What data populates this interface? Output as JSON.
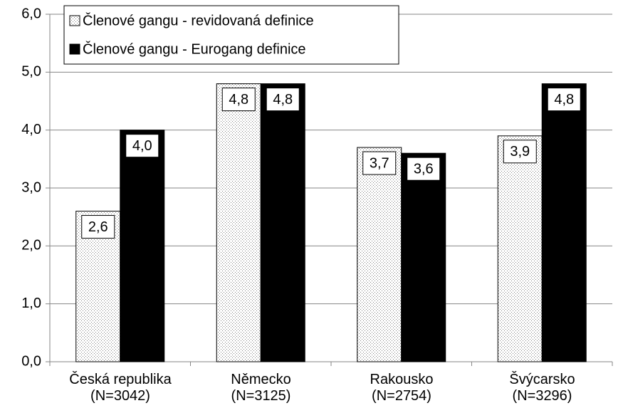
{
  "chart_data": {
    "type": "bar",
    "categories": [
      "Česká republika\n(N=3042)",
      "Německo\n(N=3125)",
      "Rakousko\n(N=2754)",
      "Švýcarsko\n(N=3296)"
    ],
    "series": [
      {
        "name": "Členové gangu - revidovaná definice",
        "color": "#7f7f7f",
        "pattern": "dots",
        "values": [
          2.6,
          4.8,
          3.7,
          3.9
        ],
        "value_labels": [
          "2,6",
          "4,8",
          "3,7",
          "3,9"
        ]
      },
      {
        "name": "Členové gangu - Eurogang definice",
        "color": "#000000",
        "values": [
          4.0,
          4.8,
          3.6,
          4.8
        ],
        "value_labels": [
          "4,0",
          "4,8",
          "3,6",
          "4,8"
        ]
      }
    ],
    "ylim": [
      0,
      6
    ],
    "yticks": [
      {
        "value": 0,
        "label": "0,0"
      },
      {
        "value": 1,
        "label": "1,0"
      },
      {
        "value": 2,
        "label": "2,0"
      },
      {
        "value": 3,
        "label": "3,0"
      },
      {
        "value": 4,
        "label": "4,0"
      },
      {
        "value": 5,
        "label": "5,0"
      },
      {
        "value": 6,
        "label": "6,0"
      }
    ],
    "grid": true,
    "legend": "top-left"
  }
}
